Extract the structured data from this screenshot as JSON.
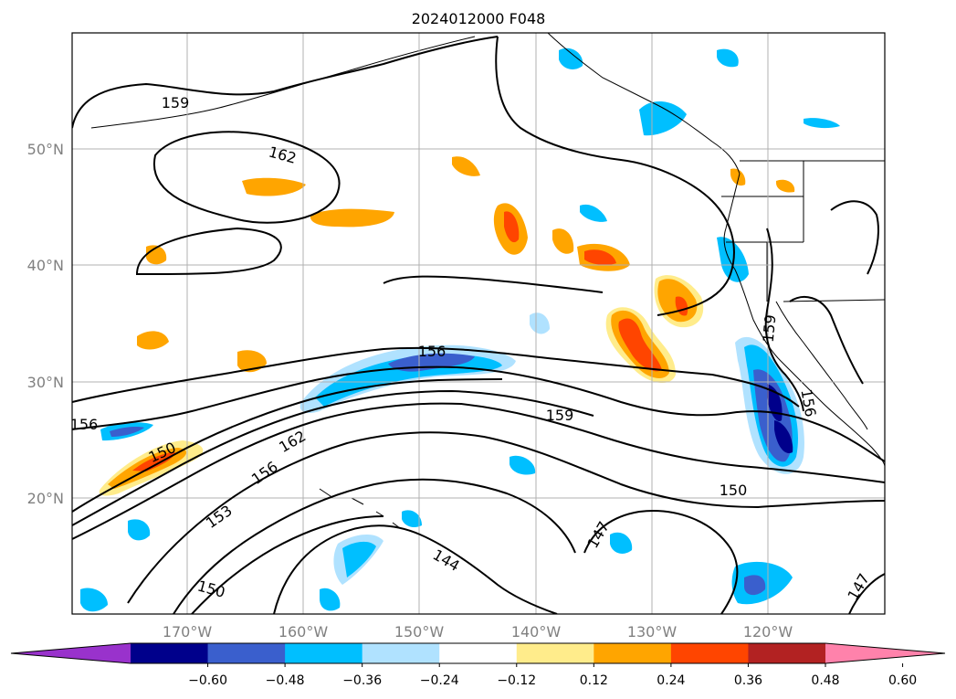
{
  "title": "2024012000 F048",
  "map": {
    "lon_range": [
      -180,
      -110
    ],
    "lat_range": [
      10,
      60
    ],
    "lon_ticks": [
      "170°W",
      "160°W",
      "150°W",
      "140°W",
      "130°W",
      "120°W"
    ],
    "lat_ticks": [
      "20°N",
      "30°N",
      "40°N",
      "50°N"
    ],
    "grid": true,
    "contour_labels": [
      "159",
      "162",
      "156",
      "159",
      "150",
      "162",
      "156",
      "153",
      "150",
      "144",
      "147",
      "150",
      "147",
      "159",
      "156",
      "156"
    ]
  },
  "colorbar": {
    "tick_labels": [
      "−0.60",
      "−0.48",
      "−0.36",
      "−0.24",
      "−0.12",
      "0.12",
      "0.24",
      "0.36",
      "0.48",
      "0.60"
    ],
    "colors": [
      "#9932cc",
      "#00008b",
      "#3a5fcd",
      "#00bfff",
      "#b0e2ff",
      "#ffffff",
      "#ffec8b",
      "#ffa500",
      "#ff4500",
      "#b22222",
      "#ff82ab"
    ],
    "extend": "both"
  },
  "colors": {
    "text": "#000000",
    "tick": "#808080",
    "grid": "#b0b0b0"
  }
}
